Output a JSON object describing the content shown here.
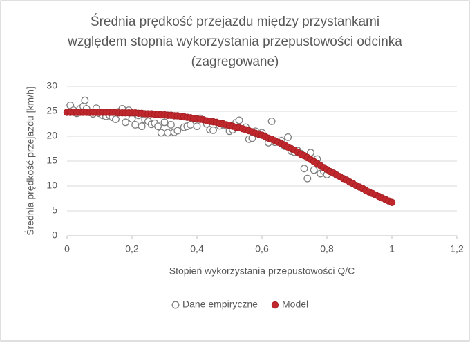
{
  "chart_data": {
    "type": "scatter",
    "title": [
      "Średnia prędkość przejazdu między przystankami",
      "względem stopnia wykorzystania przepustowości odcinka",
      "(zagregowane)"
    ],
    "x_label": "Stopień wykorzystania przepustowości Q/C",
    "y_label": "Średnia prędkość przejazdu [km/h]",
    "xlim": [
      0,
      1.2
    ],
    "ylim": [
      0,
      30
    ],
    "xticks": [
      0,
      {
        "value": 0.2,
        "label": "0,2"
      },
      {
        "value": 0.4,
        "label": "0,4"
      },
      {
        "value": 0.6,
        "label": "0,6"
      },
      {
        "value": 0.8,
        "label": "0,8"
      },
      1,
      {
        "value": 1.2,
        "label": "1,2"
      }
    ],
    "yticks": [
      0,
      5,
      10,
      15,
      20,
      25,
      30
    ],
    "grid": true,
    "legend": "bottom",
    "series": [
      {
        "name": "Dane empiryczne",
        "color": "#7f7f7f",
        "marker": "open",
        "x": [
          0.01,
          0.02,
          0.03,
          0.04,
          0.05,
          0.055,
          0.06,
          0.07,
          0.08,
          0.09,
          0.1,
          0.11,
          0.12,
          0.13,
          0.14,
          0.15,
          0.16,
          0.17,
          0.18,
          0.19,
          0.2,
          0.21,
          0.22,
          0.23,
          0.24,
          0.25,
          0.26,
          0.27,
          0.28,
          0.29,
          0.3,
          0.31,
          0.32,
          0.33,
          0.34,
          0.36,
          0.37,
          0.38,
          0.4,
          0.41,
          0.43,
          0.44,
          0.45,
          0.47,
          0.48,
          0.49,
          0.5,
          0.51,
          0.52,
          0.53,
          0.55,
          0.56,
          0.57,
          0.58,
          0.6,
          0.62,
          0.63,
          0.64,
          0.66,
          0.67,
          0.68,
          0.69,
          0.7,
          0.71,
          0.72,
          0.73,
          0.74,
          0.75,
          0.76,
          0.77,
          0.78,
          0.79,
          0.8
        ],
        "values": [
          26.2,
          25.2,
          24.6,
          25.5,
          26.0,
          27.2,
          25.5,
          24.8,
          24.5,
          25.6,
          24.6,
          24.2,
          24.0,
          24.3,
          23.8,
          23.4,
          24.9,
          25.5,
          22.8,
          25.2,
          23.5,
          22.3,
          24.2,
          22.0,
          23.3,
          23.0,
          22.4,
          22.6,
          22.0,
          20.7,
          22.8,
          20.7,
          22.3,
          20.8,
          21.1,
          21.8,
          22.0,
          22.3,
          22.0,
          23.6,
          22.5,
          21.3,
          21.2,
          22.1,
          22.4,
          22.1,
          21.0,
          21.3,
          22.7,
          23.2,
          21.8,
          19.4,
          19.6,
          21.0,
          20.7,
          18.7,
          23.0,
          18.8,
          19.1,
          18.0,
          19.8,
          17.0,
          16.8,
          17.1,
          16.5,
          13.5,
          11.5,
          16.7,
          13.2,
          15.4,
          12.5,
          13.0,
          12.3
        ]
      },
      {
        "name": "Model",
        "color": "#c0282d",
        "marker": "filled",
        "x": [
          0,
          0.01,
          0.02,
          0.03,
          0.04,
          0.05,
          0.06,
          0.07,
          0.08,
          0.09,
          0.1,
          0.11,
          0.12,
          0.13,
          0.14,
          0.15,
          0.16,
          0.17,
          0.18,
          0.19,
          0.2,
          0.21,
          0.22,
          0.23,
          0.24,
          0.25,
          0.26,
          0.27,
          0.28,
          0.29,
          0.3,
          0.31,
          0.32,
          0.33,
          0.34,
          0.35,
          0.36,
          0.37,
          0.38,
          0.39,
          0.4,
          0.41,
          0.42,
          0.43,
          0.44,
          0.45,
          0.46,
          0.47,
          0.48,
          0.49,
          0.5,
          0.51,
          0.52,
          0.53,
          0.54,
          0.55,
          0.56,
          0.57,
          0.58,
          0.59,
          0.6,
          0.61,
          0.62,
          0.63,
          0.64,
          0.65,
          0.66,
          0.67,
          0.68,
          0.69,
          0.7,
          0.71,
          0.72,
          0.73,
          0.74,
          0.75,
          0.76,
          0.77,
          0.78,
          0.79,
          0.8,
          0.81,
          0.82,
          0.83,
          0.84,
          0.85,
          0.86,
          0.87,
          0.88,
          0.89,
          0.9,
          0.91,
          0.92,
          0.93,
          0.94,
          0.95,
          0.96,
          0.97,
          0.98,
          0.99,
          1
        ],
        "values": [
          24.8,
          24.8,
          24.8,
          24.8,
          24.8,
          24.8,
          24.8,
          24.8,
          24.8,
          24.8,
          24.8,
          24.8,
          24.8,
          24.8,
          24.8,
          24.8,
          24.7,
          24.7,
          24.7,
          24.7,
          24.7,
          24.7,
          24.6,
          24.6,
          24.5,
          24.5,
          24.5,
          24.4,
          24.4,
          24.3,
          24.3,
          24.2,
          24.2,
          24.1,
          24.1,
          24.0,
          23.9,
          23.8,
          23.7,
          23.6,
          23.5,
          23.4,
          23.3,
          23.1,
          23.0,
          22.9,
          22.8,
          22.6,
          22.5,
          22.3,
          22.2,
          22.0,
          21.8,
          21.7,
          21.5,
          21.3,
          21.1,
          20.9,
          20.6,
          20.4,
          20.2,
          19.9,
          19.6,
          19.4,
          19.1,
          18.8,
          18.5,
          18.2,
          17.8,
          17.5,
          17.2,
          16.8,
          16.4,
          16.1,
          15.7,
          15.3,
          14.9,
          14.5,
          14.1,
          13.7,
          13.3,
          12.9,
          12.6,
          12.2,
          11.9,
          11.5,
          11.2,
          10.8,
          10.5,
          10.1,
          9.8,
          9.5,
          9.1,
          8.8,
          8.5,
          8.2,
          7.9,
          7.6,
          7.3,
          7.0,
          6.7
        ]
      }
    ]
  }
}
